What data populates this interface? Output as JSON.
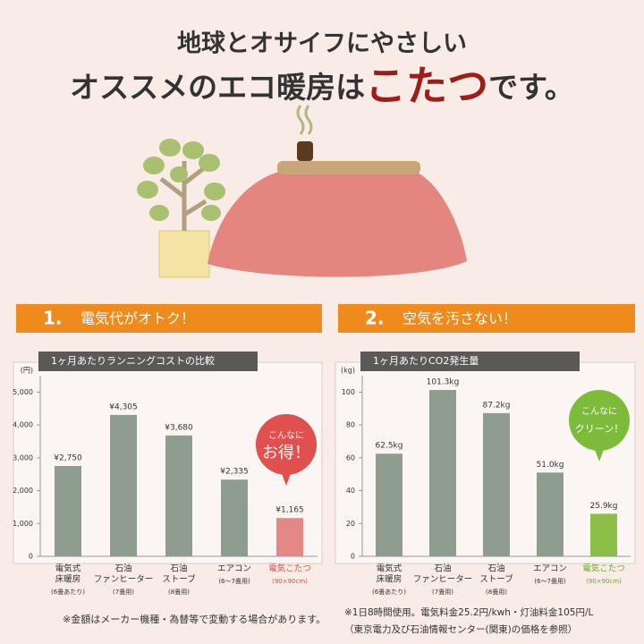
{
  "header": {
    "line1": "地球とオサイフにやさしい",
    "line2_a": "オススメのエコ暖房は",
    "line2_b": "こたつ",
    "line2_c": "です。"
  },
  "chart_data": [
    {
      "type": "bar",
      "section_number": "1.",
      "section_title": "電気代がオトク！",
      "title": "1ヶ月あたりランニングコストの比較",
      "unit": "(円)",
      "categories": [
        [
          "電気式",
          "床暖房"
        ],
        [
          "石油",
          "ファンヒーター"
        ],
        [
          "石油",
          "ストーブ"
        ],
        [
          "エアコン"
        ],
        [
          "電気こたつ"
        ]
      ],
      "category_notes": [
        "(6畳あたり)",
        "(7畳用)",
        "(8畳用)",
        "(6〜7畳用)",
        "(90×90cm)"
      ],
      "values": [
        2750,
        4305,
        3680,
        2335,
        1165
      ],
      "value_labels": [
        "¥2,750",
        "¥4,305",
        "¥3,680",
        "¥2,335",
        "¥1,165"
      ],
      "colors": [
        "#8f9d8f",
        "#8f9d8f",
        "#8f9d8f",
        "#8f9d8f",
        "#e38886"
      ],
      "label_colors": [
        "#333333",
        "#333333",
        "#333333",
        "#333333",
        "#d0504a"
      ],
      "ylim": [
        0,
        5500
      ],
      "yticks": [
        0,
        {
          "value": 1000,
          "label": "1,000"
        },
        {
          "value": 2000,
          "label": "2,000"
        },
        {
          "value": 3000,
          "label": "3,000"
        },
        {
          "value": 4000,
          "label": "4,000"
        },
        {
          "value": 5000,
          "label": "5,000"
        }
      ],
      "callout": [
        "こんなに",
        "お得！"
      ],
      "callout_color": "#e0504e"
    },
    {
      "type": "bar",
      "section_number": "2.",
      "section_title": "空気を汚さない！",
      "title": "1ヶ月あたりCO2発生量",
      "unit": "(kg)",
      "categories": [
        [
          "電気式",
          "床暖房"
        ],
        [
          "石油",
          "ファンヒーター"
        ],
        [
          "石油",
          "ストーブ"
        ],
        [
          "エアコン"
        ],
        [
          "電気こたつ"
        ]
      ],
      "category_notes": [
        "(6畳あたり)",
        "(7畳用)",
        "(8畳用)",
        "(6〜7畳用)",
        "(90×90cm)"
      ],
      "values": [
        62.5,
        101.3,
        87.2,
        51.0,
        25.9
      ],
      "value_labels": [
        "62.5kg",
        "101.3kg",
        "87.2kg",
        "51.0kg",
        "25.9kg"
      ],
      "colors": [
        "#8f9d8f",
        "#8f9d8f",
        "#8f9d8f",
        "#8f9d8f",
        "#8cbf48"
      ],
      "label_colors": [
        "#333333",
        "#333333",
        "#333333",
        "#333333",
        "#6aa832"
      ],
      "ylim": [
        0,
        110
      ],
      "yticks": [
        0,
        20,
        40,
        60,
        80,
        100
      ],
      "callout": [
        "こんなに",
        "クリーン！"
      ],
      "callout_color": "#7cbc3a"
    }
  ],
  "footnotes": {
    "left": "※金額はメーカー機種・為替等で変動する場合があります。",
    "right": [
      "※1日8時間使用。電気料金25.2円/kwh・灯油料金105円/L",
      "（東京電力及び石油情報センター(関東)の価格を参照）"
    ]
  }
}
